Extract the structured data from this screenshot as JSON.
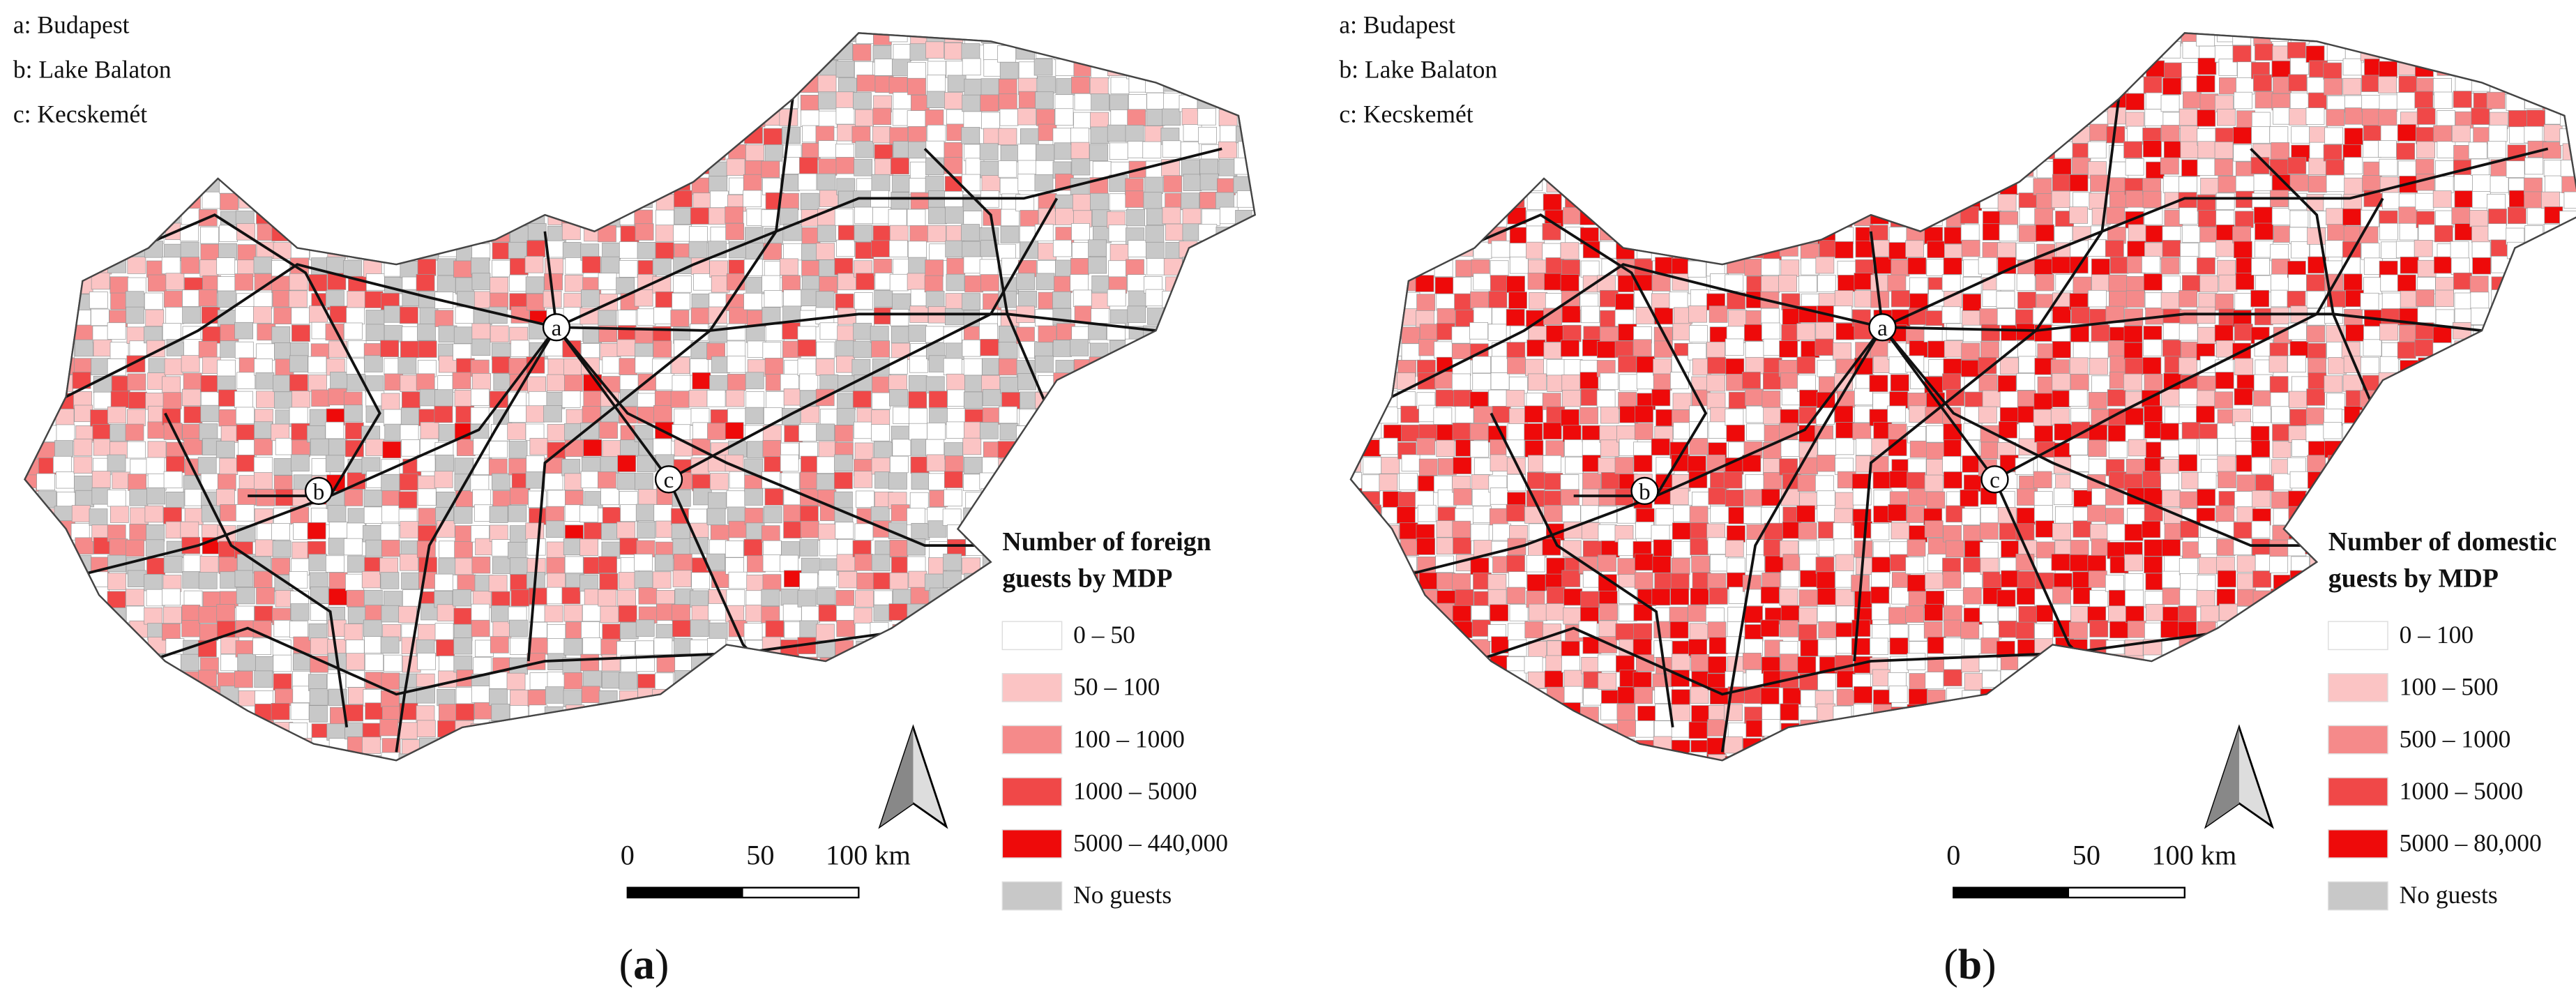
{
  "panels": [
    {
      "labels": [
        "a: Budapest",
        "b: Lake Balaton",
        "c: Kecskemét"
      ],
      "legend": {
        "title": [
          "Number of foreign",
          "guests by MDP"
        ],
        "items": [
          {
            "label": "0 – 50",
            "color": "#ffffff"
          },
          {
            "label": "50 – 100",
            "color": "#fbc4c4"
          },
          {
            "label": "100 – 1000",
            "color": "#f58a8a"
          },
          {
            "label": "1000 – 5000",
            "color": "#f04848"
          },
          {
            "label": "5000 – 440,000",
            "color": "#ee0a0a"
          },
          {
            "label": "No guests",
            "color": "#c8c8c8"
          }
        ]
      },
      "scale": [
        "0",
        "50",
        "100 km"
      ],
      "places": [
        "a",
        "b",
        "c"
      ],
      "caption": [
        "(",
        "a",
        ")"
      ]
    },
    {
      "labels": [
        "a: Budapest",
        "b: Lake Balaton",
        "c: Kecskemét"
      ],
      "legend": {
        "title": [
          "Number of domestic",
          "guests by MDP"
        ],
        "items": [
          {
            "label": "0 – 100",
            "color": "#ffffff"
          },
          {
            "label": "100 – 500",
            "color": "#fbc4c4"
          },
          {
            "label": "500 – 1000",
            "color": "#f58a8a"
          },
          {
            "label": "1000 – 5000",
            "color": "#f04848"
          },
          {
            "label": "5000 – 80,000",
            "color": "#ee0a0a"
          },
          {
            "label": "No guests",
            "color": "#c8c8c8"
          }
        ]
      },
      "scale": [
        "0",
        "50",
        "100 km"
      ],
      "places": [
        "a",
        "b",
        "c"
      ],
      "caption": [
        "(",
        "b",
        ")"
      ]
    }
  ]
}
